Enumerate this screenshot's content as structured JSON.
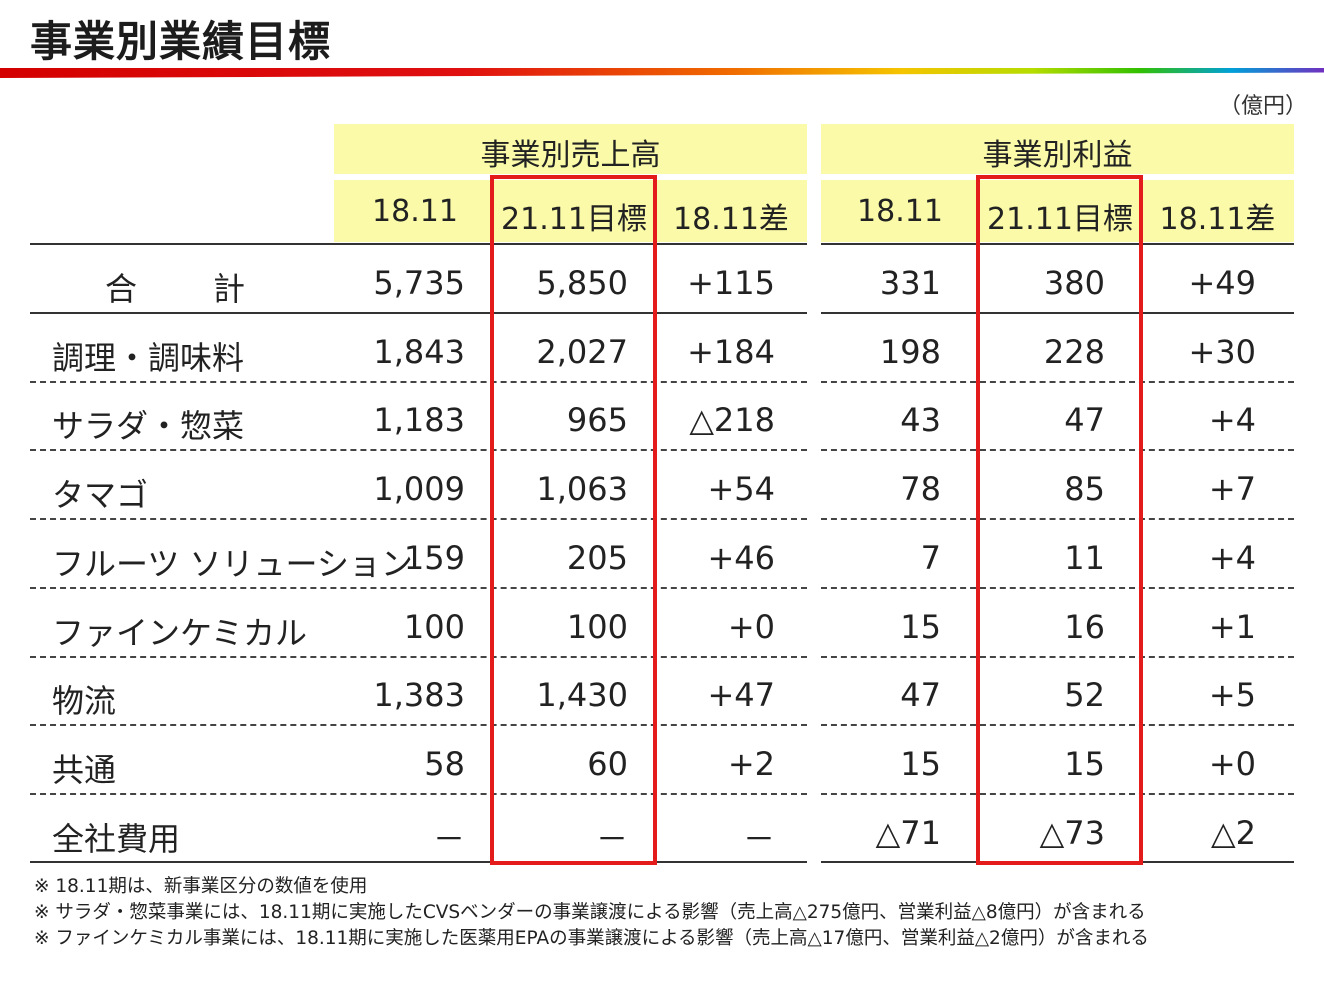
{
  "title": "事業別業績目標",
  "unit": "（億円）",
  "groups": {
    "sales": "事業別売上高",
    "profit": "事業別利益"
  },
  "columns": [
    "18.11",
    "21.11目標",
    "18.11差",
    "18.11",
    "21.11目標",
    "18.11差"
  ],
  "rows": [
    {
      "label": "合　　計",
      "values": [
        "5,735",
        "5,850",
        "+115",
        "331",
        "380",
        "+49"
      ]
    },
    {
      "label": "調理・調味料",
      "values": [
        "1,843",
        "2,027",
        "+184",
        "198",
        "228",
        "+30"
      ]
    },
    {
      "label": "サラダ・惣菜",
      "values": [
        "1,183",
        "965",
        "△218",
        "43",
        "47",
        "+4"
      ]
    },
    {
      "label": "タマゴ",
      "values": [
        "1,009",
        "1,063",
        "+54",
        "78",
        "85",
        "+7"
      ]
    },
    {
      "label": "フルーツ ソリューション",
      "values": [
        "159",
        "205",
        "+46",
        "7",
        "11",
        "+4"
      ]
    },
    {
      "label": "ファインケミカル",
      "values": [
        "100",
        "100",
        "+0",
        "15",
        "16",
        "+1"
      ]
    },
    {
      "label": "物流",
      "values": [
        "1,383",
        "1,430",
        "+47",
        "47",
        "52",
        "+5"
      ]
    },
    {
      "label": "共通",
      "values": [
        "58",
        "60",
        "+2",
        "15",
        "15",
        "+0"
      ]
    },
    {
      "label": "全社費用",
      "values": [
        "－",
        "－",
        "－",
        "△71",
        "△73",
        "△2"
      ]
    }
  ],
  "notes": [
    "※ 18.11期は、新事業区分の数値を使用",
    "※ サラダ・惣菜事業には、18.11期に実施したCVSベンダーの事業譲渡による影響（売上高△275億円、営業利益△8億円）が含まれる",
    "※ ファインケミカル事業には、18.11期に実施した医薬用EPAの事業譲渡による影響（売上高△17億円、営業利益△2億円）が含まれる"
  ],
  "colors": {
    "header_band": "#fafaa8",
    "highlight": "#e41b1b"
  }
}
